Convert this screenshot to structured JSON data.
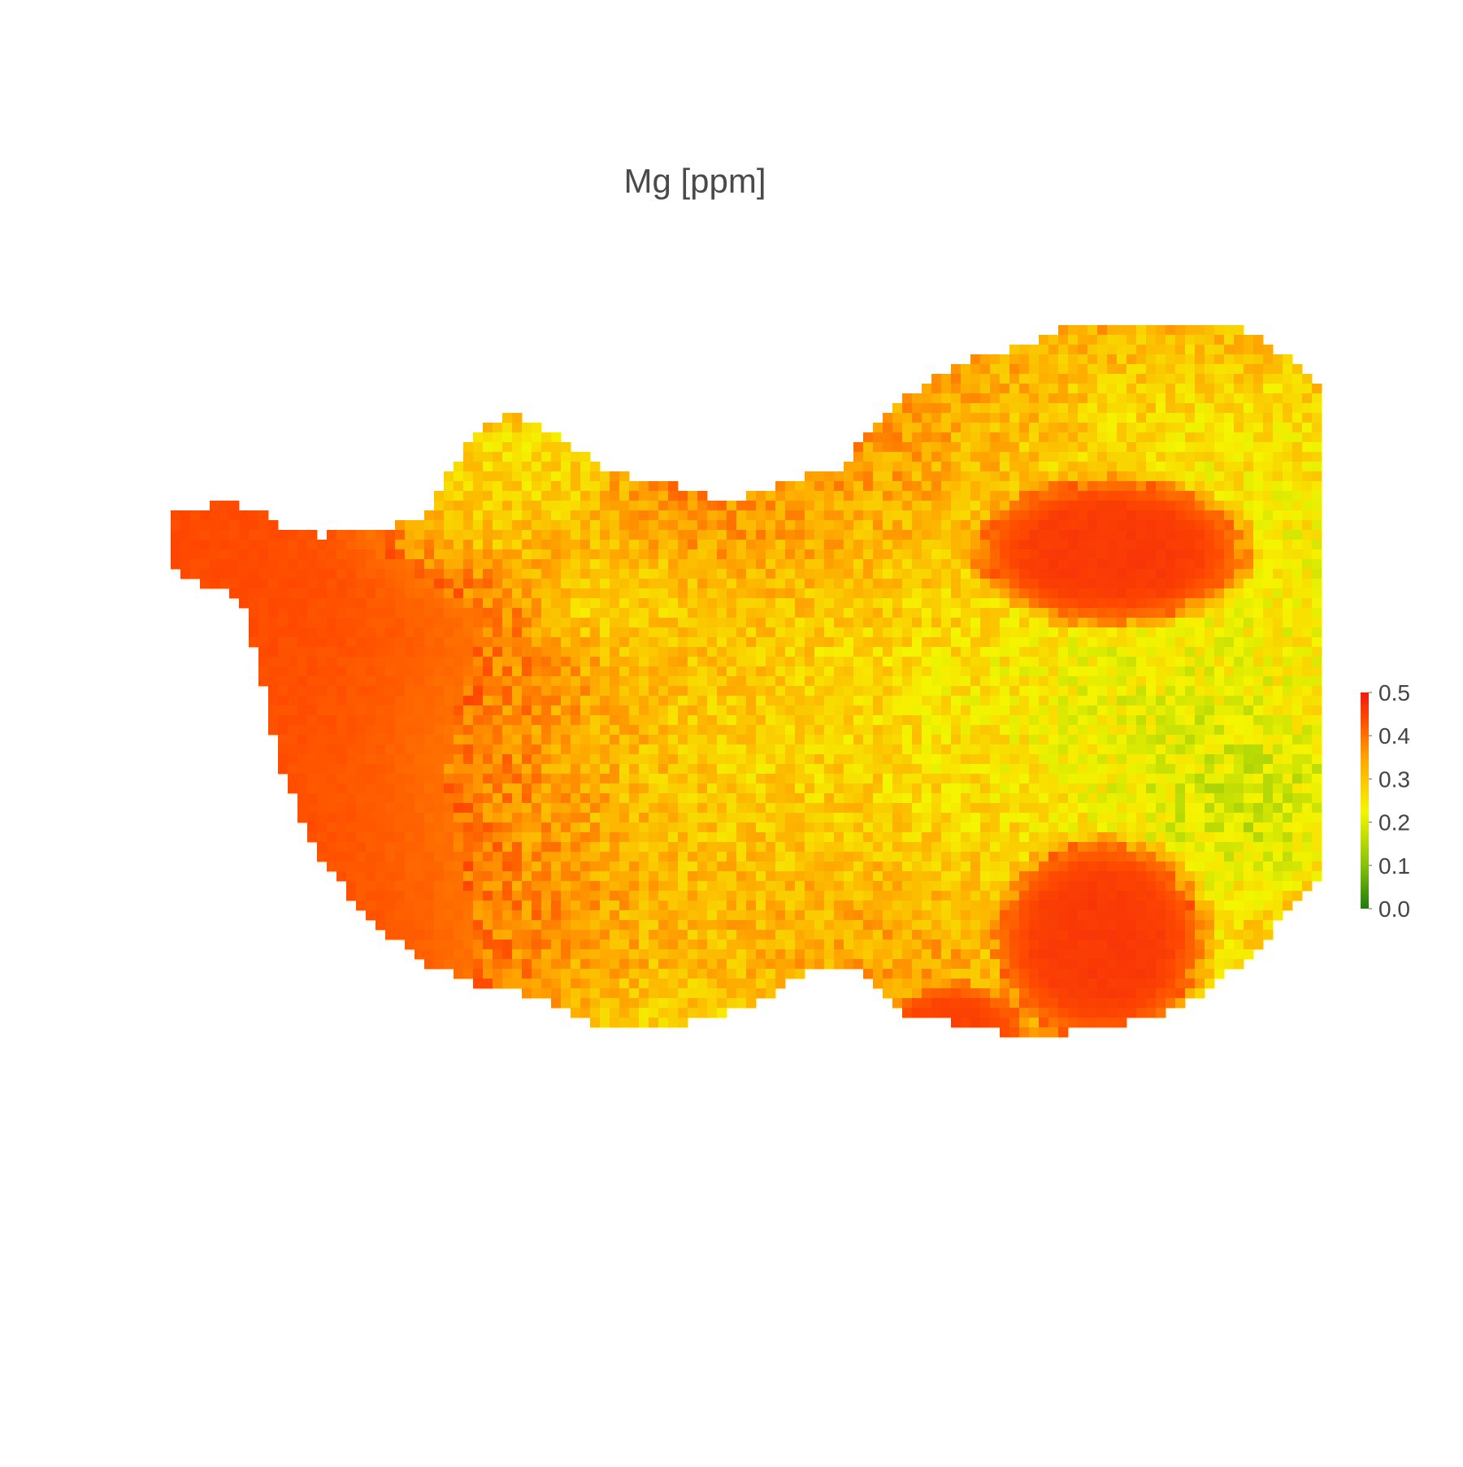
{
  "chart_data": {
    "type": "heatmap",
    "title": "Mg [ppm]",
    "xlabel": "",
    "ylabel": "",
    "zlim": [
      0.0,
      0.5
    ],
    "colorscale": [
      [
        0.0,
        "#1e7b0f"
      ],
      [
        0.2,
        "#86c20a"
      ],
      [
        0.45,
        "#f5f500"
      ],
      [
        0.7,
        "#ffa400"
      ],
      [
        0.88,
        "#ff4a00"
      ],
      [
        1.0,
        "#ee1a10"
      ]
    ],
    "colorbar": {
      "ticks": [
        0.0,
        0.1,
        0.2,
        0.3,
        0.4,
        0.5
      ],
      "tick_labels": [
        "0.0",
        "0.1",
        "0.2",
        "0.3",
        "0.4",
        "0.5"
      ]
    },
    "background_value": 0.44,
    "hotspots": [
      {
        "x": 0.3,
        "y": 0.18,
        "r": 0.07,
        "value": 0.22
      },
      {
        "x": 0.39,
        "y": 0.34,
        "r": 0.05,
        "value": 0.24
      },
      {
        "x": 0.28,
        "y": 0.23,
        "r": 0.05,
        "value": 0.3
      },
      {
        "x": 0.55,
        "y": 0.6,
        "r": 0.16,
        "value": 0.3
      },
      {
        "x": 0.48,
        "y": 0.95,
        "r": 0.12,
        "value": 0.18
      },
      {
        "x": 0.6,
        "y": 0.52,
        "r": 0.18,
        "value": 0.3
      },
      {
        "x": 0.7,
        "y": 0.45,
        "r": 0.17,
        "value": 0.27
      },
      {
        "x": 0.78,
        "y": 0.14,
        "r": 0.18,
        "value": 0.34
      },
      {
        "x": 0.92,
        "y": 0.15,
        "r": 0.12,
        "value": 0.26
      },
      {
        "x": 0.96,
        "y": 0.3,
        "r": 0.1,
        "value": 0.24
      },
      {
        "x": 0.88,
        "y": 0.48,
        "r": 0.16,
        "value": 0.22
      },
      {
        "x": 0.94,
        "y": 0.6,
        "r": 0.08,
        "value": 0.18
      },
      {
        "x": 0.82,
        "y": 0.8,
        "r": 0.1,
        "value": 0.2
      },
      {
        "x": 0.63,
        "y": 0.82,
        "r": 0.12,
        "value": 0.34
      }
    ],
    "cold_zones": [
      {
        "x": 0.82,
        "y": 0.28,
        "rx": 0.13,
        "ry": 0.1,
        "value": 0.46
      },
      {
        "x": 0.81,
        "y": 0.76,
        "rx": 0.1,
        "ry": 0.14,
        "value": 0.46
      },
      {
        "x": 0.68,
        "y": 0.88,
        "rx": 0.07,
        "ry": 0.07,
        "value": 0.45
      }
    ]
  }
}
